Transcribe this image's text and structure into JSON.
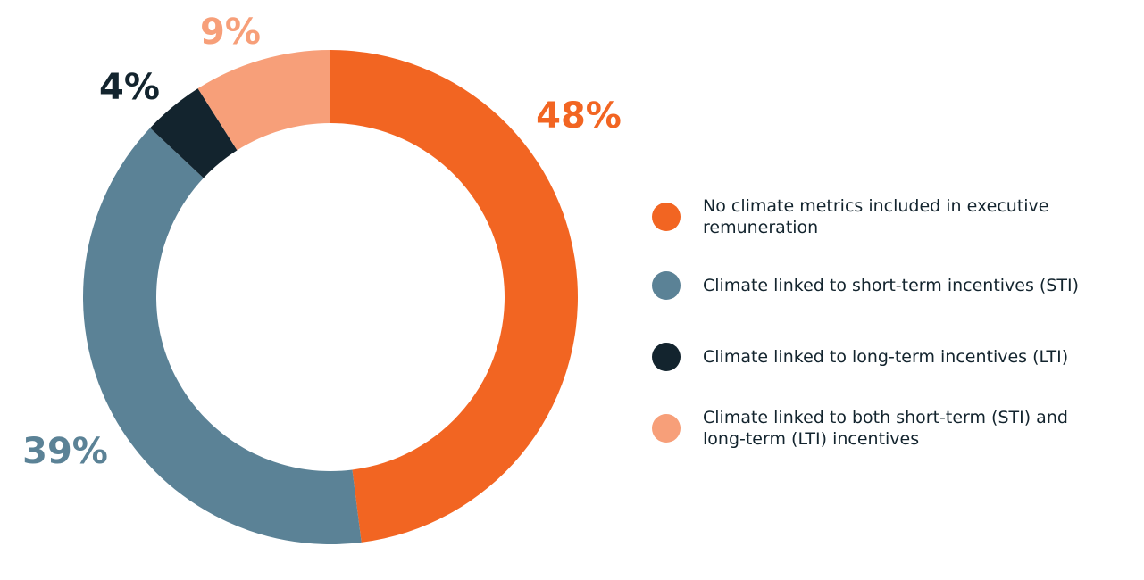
{
  "chart_data": {
    "type": "donut",
    "categories": [
      "No climate metrics included in executive remuneration",
      "Climate linked to short-term incentives (STI)",
      "Climate linked to long-term incentives (LTI)",
      "Climate linked to both short-term (STI) and long-term (LTI) incentives"
    ],
    "values": [
      48,
      39,
      4,
      9
    ],
    "value_labels": [
      "48%",
      "39%",
      "4%",
      "9%"
    ],
    "colors": [
      "#f26522",
      "#5b8296",
      "#13242e",
      "#f79f79"
    ]
  }
}
